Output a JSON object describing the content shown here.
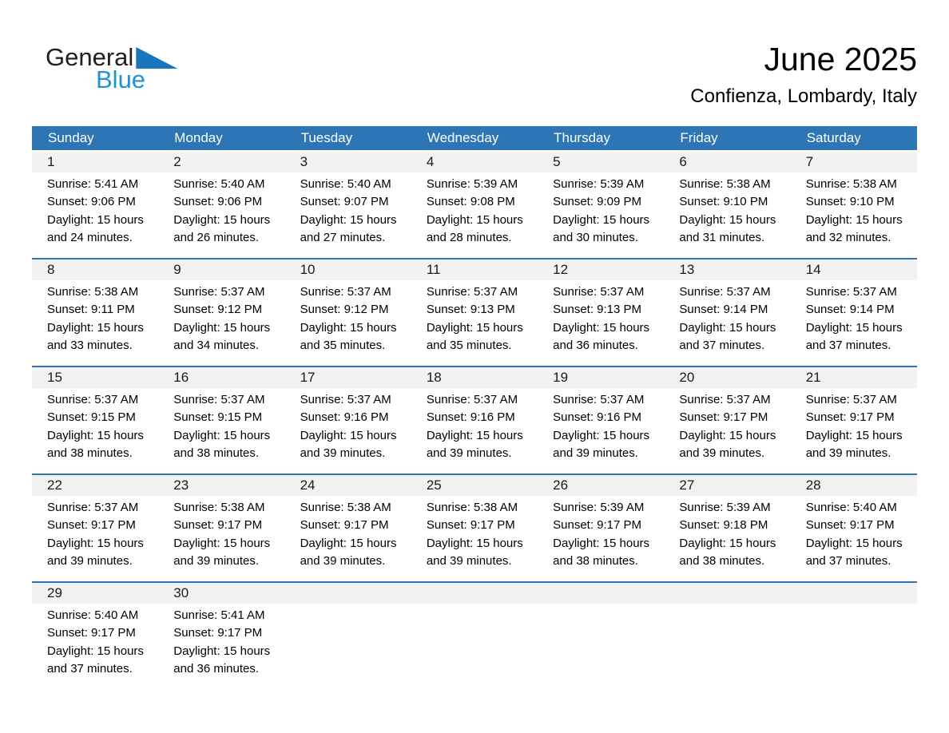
{
  "logo": {
    "general": "General",
    "blue": "Blue"
  },
  "header": {
    "title": "June 2025",
    "subtitle": "Confienza, Lombardy, Italy"
  },
  "colors": {
    "header_blue": "#2e75b6",
    "week_separator_blue": "#2e75b6",
    "day_band_gray": "#f2f2f2",
    "logo_triangle_blue": "#1b75bc",
    "logo_text_blue": "#2193d1"
  },
  "calendar": {
    "weekdays": [
      "Sunday",
      "Monday",
      "Tuesday",
      "Wednesday",
      "Thursday",
      "Friday",
      "Saturday"
    ],
    "weeks": [
      [
        {
          "num": "1",
          "sunrise": "Sunrise: 5:41 AM",
          "sunset": "Sunset: 9:06 PM",
          "daylight1": "Daylight: 15 hours",
          "daylight2": "and 24 minutes."
        },
        {
          "num": "2",
          "sunrise": "Sunrise: 5:40 AM",
          "sunset": "Sunset: 9:06 PM",
          "daylight1": "Daylight: 15 hours",
          "daylight2": "and 26 minutes."
        },
        {
          "num": "3",
          "sunrise": "Sunrise: 5:40 AM",
          "sunset": "Sunset: 9:07 PM",
          "daylight1": "Daylight: 15 hours",
          "daylight2": "and 27 minutes."
        },
        {
          "num": "4",
          "sunrise": "Sunrise: 5:39 AM",
          "sunset": "Sunset: 9:08 PM",
          "daylight1": "Daylight: 15 hours",
          "daylight2": "and 28 minutes."
        },
        {
          "num": "5",
          "sunrise": "Sunrise: 5:39 AM",
          "sunset": "Sunset: 9:09 PM",
          "daylight1": "Daylight: 15 hours",
          "daylight2": "and 30 minutes."
        },
        {
          "num": "6",
          "sunrise": "Sunrise: 5:38 AM",
          "sunset": "Sunset: 9:10 PM",
          "daylight1": "Daylight: 15 hours",
          "daylight2": "and 31 minutes."
        },
        {
          "num": "7",
          "sunrise": "Sunrise: 5:38 AM",
          "sunset": "Sunset: 9:10 PM",
          "daylight1": "Daylight: 15 hours",
          "daylight2": "and 32 minutes."
        }
      ],
      [
        {
          "num": "8",
          "sunrise": "Sunrise: 5:38 AM",
          "sunset": "Sunset: 9:11 PM",
          "daylight1": "Daylight: 15 hours",
          "daylight2": "and 33 minutes."
        },
        {
          "num": "9",
          "sunrise": "Sunrise: 5:37 AM",
          "sunset": "Sunset: 9:12 PM",
          "daylight1": "Daylight: 15 hours",
          "daylight2": "and 34 minutes."
        },
        {
          "num": "10",
          "sunrise": "Sunrise: 5:37 AM",
          "sunset": "Sunset: 9:12 PM",
          "daylight1": "Daylight: 15 hours",
          "daylight2": "and 35 minutes."
        },
        {
          "num": "11",
          "sunrise": "Sunrise: 5:37 AM",
          "sunset": "Sunset: 9:13 PM",
          "daylight1": "Daylight: 15 hours",
          "daylight2": "and 35 minutes."
        },
        {
          "num": "12",
          "sunrise": "Sunrise: 5:37 AM",
          "sunset": "Sunset: 9:13 PM",
          "daylight1": "Daylight: 15 hours",
          "daylight2": "and 36 minutes."
        },
        {
          "num": "13",
          "sunrise": "Sunrise: 5:37 AM",
          "sunset": "Sunset: 9:14 PM",
          "daylight1": "Daylight: 15 hours",
          "daylight2": "and 37 minutes."
        },
        {
          "num": "14",
          "sunrise": "Sunrise: 5:37 AM",
          "sunset": "Sunset: 9:14 PM",
          "daylight1": "Daylight: 15 hours",
          "daylight2": "and 37 minutes."
        }
      ],
      [
        {
          "num": "15",
          "sunrise": "Sunrise: 5:37 AM",
          "sunset": "Sunset: 9:15 PM",
          "daylight1": "Daylight: 15 hours",
          "daylight2": "and 38 minutes."
        },
        {
          "num": "16",
          "sunrise": "Sunrise: 5:37 AM",
          "sunset": "Sunset: 9:15 PM",
          "daylight1": "Daylight: 15 hours",
          "daylight2": "and 38 minutes."
        },
        {
          "num": "17",
          "sunrise": "Sunrise: 5:37 AM",
          "sunset": "Sunset: 9:16 PM",
          "daylight1": "Daylight: 15 hours",
          "daylight2": "and 39 minutes."
        },
        {
          "num": "18",
          "sunrise": "Sunrise: 5:37 AM",
          "sunset": "Sunset: 9:16 PM",
          "daylight1": "Daylight: 15 hours",
          "daylight2": "and 39 minutes."
        },
        {
          "num": "19",
          "sunrise": "Sunrise: 5:37 AM",
          "sunset": "Sunset: 9:16 PM",
          "daylight1": "Daylight: 15 hours",
          "daylight2": "and 39 minutes."
        },
        {
          "num": "20",
          "sunrise": "Sunrise: 5:37 AM",
          "sunset": "Sunset: 9:17 PM",
          "daylight1": "Daylight: 15 hours",
          "daylight2": "and 39 minutes."
        },
        {
          "num": "21",
          "sunrise": "Sunrise: 5:37 AM",
          "sunset": "Sunset: 9:17 PM",
          "daylight1": "Daylight: 15 hours",
          "daylight2": "and 39 minutes."
        }
      ],
      [
        {
          "num": "22",
          "sunrise": "Sunrise: 5:37 AM",
          "sunset": "Sunset: 9:17 PM",
          "daylight1": "Daylight: 15 hours",
          "daylight2": "and 39 minutes."
        },
        {
          "num": "23",
          "sunrise": "Sunrise: 5:38 AM",
          "sunset": "Sunset: 9:17 PM",
          "daylight1": "Daylight: 15 hours",
          "daylight2": "and 39 minutes."
        },
        {
          "num": "24",
          "sunrise": "Sunrise: 5:38 AM",
          "sunset": "Sunset: 9:17 PM",
          "daylight1": "Daylight: 15 hours",
          "daylight2": "and 39 minutes."
        },
        {
          "num": "25",
          "sunrise": "Sunrise: 5:38 AM",
          "sunset": "Sunset: 9:17 PM",
          "daylight1": "Daylight: 15 hours",
          "daylight2": "and 39 minutes."
        },
        {
          "num": "26",
          "sunrise": "Sunrise: 5:39 AM",
          "sunset": "Sunset: 9:17 PM",
          "daylight1": "Daylight: 15 hours",
          "daylight2": "and 38 minutes."
        },
        {
          "num": "27",
          "sunrise": "Sunrise: 5:39 AM",
          "sunset": "Sunset: 9:18 PM",
          "daylight1": "Daylight: 15 hours",
          "daylight2": "and 38 minutes."
        },
        {
          "num": "28",
          "sunrise": "Sunrise: 5:40 AM",
          "sunset": "Sunset: 9:17 PM",
          "daylight1": "Daylight: 15 hours",
          "daylight2": "and 37 minutes."
        }
      ],
      [
        {
          "num": "29",
          "sunrise": "Sunrise: 5:40 AM",
          "sunset": "Sunset: 9:17 PM",
          "daylight1": "Daylight: 15 hours",
          "daylight2": "and 37 minutes."
        },
        {
          "num": "30",
          "sunrise": "Sunrise: 5:41 AM",
          "sunset": "Sunset: 9:17 PM",
          "daylight1": "Daylight: 15 hours",
          "daylight2": "and 36 minutes."
        },
        null,
        null,
        null,
        null,
        null
      ]
    ]
  }
}
